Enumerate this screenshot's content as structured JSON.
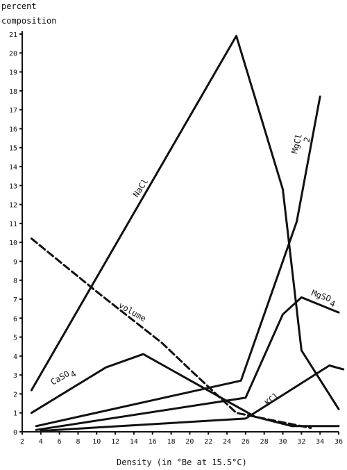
{
  "chart_data": {
    "type": "line",
    "ylabel_lines": [
      "percent",
      "composition"
    ],
    "xlabel": "Density (in °Be at 15.5°C)",
    "xlim": [
      2,
      36
    ],
    "ylim": [
      0,
      21
    ],
    "xticks": [
      2,
      4,
      6,
      8,
      10,
      12,
      14,
      16,
      18,
      20,
      22,
      24,
      26,
      28,
      30,
      32,
      34,
      36
    ],
    "yticks": [
      0,
      1,
      2,
      3,
      4,
      5,
      6,
      7,
      8,
      9,
      10,
      11,
      12,
      13,
      14,
      15,
      16,
      17,
      18,
      19,
      20,
      21
    ],
    "series": [
      {
        "name": "NaCl",
        "style": "solid",
        "points": [
          [
            3,
            2.2
          ],
          [
            25,
            20.9
          ],
          [
            30,
            12.8
          ],
          [
            32,
            4.3
          ],
          [
            36,
            1.2
          ]
        ]
      },
      {
        "name": "MgCl2",
        "style": "solid",
        "points": [
          [
            3.5,
            0.3
          ],
          [
            25.5,
            2.7
          ],
          [
            31.5,
            11.1
          ],
          [
            34,
            17.7
          ]
        ]
      },
      {
        "name": "MgSO4",
        "style": "solid",
        "points": [
          [
            3.5,
            0.1
          ],
          [
            26,
            1.8
          ],
          [
            30,
            6.2
          ],
          [
            32,
            7.1
          ],
          [
            36,
            6.3
          ]
        ]
      },
      {
        "name": "KCl",
        "style": "solid",
        "points": [
          [
            4,
            0.05
          ],
          [
            26,
            0.7
          ],
          [
            35,
            3.5
          ],
          [
            36.5,
            3.3
          ]
        ]
      },
      {
        "name": "CaSO4",
        "style": "solid",
        "points": [
          [
            3,
            1.0
          ],
          [
            11,
            3.4
          ],
          [
            15,
            4.1
          ],
          [
            27,
            0.8
          ],
          [
            31,
            0.3
          ],
          [
            36,
            0.3
          ]
        ]
      },
      {
        "name": "volume",
        "style": "dashed",
        "points": [
          [
            3,
            10.2
          ],
          [
            10,
            7.4
          ],
          [
            17,
            4.7
          ],
          [
            20,
            3.3
          ],
          [
            25,
            1.0
          ],
          [
            30,
            0.5
          ],
          [
            33,
            0.2
          ]
        ]
      }
    ],
    "labels": {
      "NaCl": "NaCl",
      "MgCl": "MgCl",
      "MgCl_sub": "2",
      "MgSO": "MgSO",
      "MgSO_sub": "4",
      "KCl": "KCl",
      "CaSO": "CaSO",
      "CaSO_sub": "4",
      "volume": "volume"
    }
  }
}
